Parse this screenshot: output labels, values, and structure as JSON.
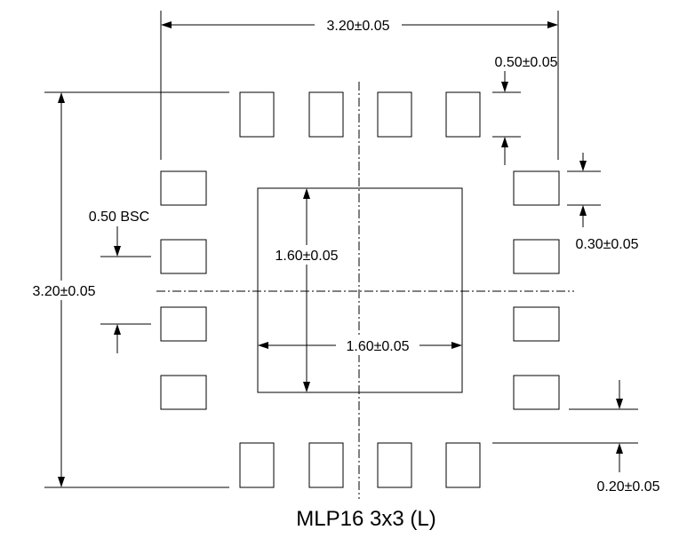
{
  "diagram": {
    "caption": "MLP16 3x3 (L)",
    "dimensions": {
      "overall_width": "3.20±0.05",
      "overall_height": "3.20±0.05",
      "pad_width": "0.50±0.05",
      "pad_height": "0.30±0.05",
      "pitch": "0.50 BSC",
      "thermal_pad_height": "1.60±0.05",
      "thermal_pad_width": "1.60±0.05",
      "pad_gap": "0.20±0.05"
    },
    "pads_per_side": 4,
    "thermal_pad_count": 1
  }
}
